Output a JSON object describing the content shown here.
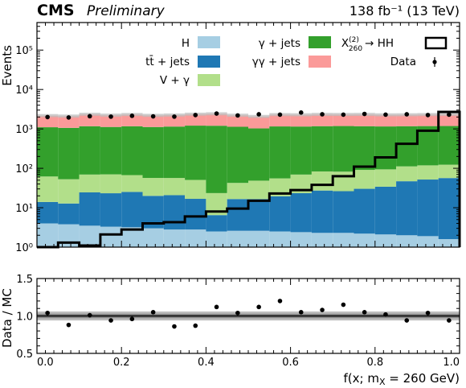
{
  "header": {
    "experiment": "CMS",
    "status": "Preliminary",
    "luminosity": "138 fb⁻¹ (13 TeV)"
  },
  "legend": {
    "h": "H",
    "tt": "tt̄ + jets",
    "vg": "V + γ",
    "gj": "γ + jets",
    "ggj": "γγ + jets",
    "signal": "X₍₂₆₀₎⁽²⁾ → HH",
    "signal_main": "X",
    "signal_sup": "(2)",
    "signal_sub": "260",
    "signal_rest": "→ HH",
    "data": "Data"
  },
  "colors": {
    "H": "#a6cee3",
    "tt": "#1f78b4",
    "vg": "#b2df8a",
    "gj": "#33a02c",
    "ggj": "#fb9a99",
    "signal": "#000000",
    "data": "#000000",
    "unc": "#bdbdbd"
  },
  "chart_data": [
    {
      "type": "bar",
      "stacked": true,
      "title": "",
      "xlabel": "",
      "ylabel": "Events",
      "yscale": "log",
      "ylim": [
        1,
        500000
      ],
      "xlim": [
        0,
        1
      ],
      "bin_edges": [
        0,
        0.05,
        0.1,
        0.15,
        0.2,
        0.25,
        0.3,
        0.35,
        0.4,
        0.45,
        0.5,
        0.55,
        0.6,
        0.65,
        0.7,
        0.75,
        0.8,
        0.85,
        0.9,
        0.95,
        1.0
      ],
      "ytick_labels": [
        "10⁰",
        "10¹",
        "10²",
        "10³",
        "10⁴",
        "10⁵"
      ],
      "ytick_values": [
        1,
        10,
        100,
        1000,
        10000,
        100000
      ],
      "series": [
        {
          "name": "H",
          "values": [
            4,
            3.8,
            3.5,
            3.3,
            3.2,
            3.0,
            2.8,
            2.8,
            2.5,
            2.6,
            2.6,
            2.5,
            2.4,
            2.3,
            2.3,
            2.2,
            2.1,
            2.0,
            1.9,
            1.6
          ]
        },
        {
          "name": "tt̄ + jets",
          "values": [
            10,
            9,
            21,
            20,
            22,
            17,
            18,
            14,
            4,
            14,
            14,
            17,
            21,
            25,
            24,
            28,
            32,
            45,
            50,
            55
          ]
        },
        {
          "name": "V + γ",
          "values": [
            48,
            40,
            45,
            47,
            42,
            37,
            36,
            34,
            17,
            26,
            32,
            36,
            46,
            56,
            56,
            61,
            60,
            65,
            67,
            67
          ]
        },
        {
          "name": "γ + jets",
          "values": [
            1040,
            1010,
            1100,
            1050,
            1100,
            1060,
            1090,
            1160,
            1180,
            1090,
            980,
            1100,
            1080,
            1090,
            1100,
            1080,
            1060,
            1060,
            1060,
            1060
          ]
        },
        {
          "name": "γγ + jets",
          "values": [
            1060,
            1040,
            1170,
            1100,
            1140,
            1080,
            1090,
            1140,
            1200,
            1080,
            1030,
            1140,
            1120,
            1150,
            1130,
            1150,
            1110,
            1100,
            1120,
            1150
          ]
        }
      ],
      "signal": {
        "name": "X(2)260 → HH",
        "values": [
          0,
          1.3,
          1.1,
          2.1,
          2.8,
          4,
          4.3,
          6,
          8,
          9.5,
          15,
          23,
          28,
          38,
          63,
          110,
          190,
          420,
          900,
          2700
        ]
      },
      "data": {
        "name": "Data",
        "values": [
          2000,
          1950,
          2100,
          2050,
          2150,
          2080,
          2050,
          2250,
          2450,
          2200,
          2350,
          2300,
          2600,
          2350,
          2300,
          2400,
          2300,
          2350,
          2250,
          2300
        ]
      }
    },
    {
      "type": "scatter",
      "title": "",
      "xlabel": "f(x⃗; mₓ = 260 GeV)",
      "xlabel_prefix": "f(",
      "xlabel_vec": "x",
      "xlabel_mid": "; m",
      "xlabel_sub": "X",
      "xlabel_suffix": " = 260 GeV)",
      "ylabel": "Data / MC",
      "ylim": [
        0.5,
        1.5
      ],
      "xlim": [
        0,
        1
      ],
      "ytick_labels": [
        "0.5",
        "1.0",
        "1.5"
      ],
      "ytick_values": [
        0.5,
        1.0,
        1.5
      ],
      "xtick_labels": [
        "0.0",
        "0.2",
        "0.4",
        "0.6",
        "0.8",
        "1.0"
      ],
      "xtick_values": [
        0,
        0.2,
        0.4,
        0.6,
        0.8,
        1.0
      ],
      "x": [
        0.025,
        0.075,
        0.125,
        0.175,
        0.225,
        0.275,
        0.325,
        0.375,
        0.425,
        0.475,
        0.525,
        0.575,
        0.625,
        0.675,
        0.725,
        0.775,
        0.825,
        0.875,
        0.925,
        0.975
      ],
      "y": [
        1.04,
        0.88,
        1.01,
        0.94,
        0.96,
        1.05,
        0.86,
        0.87,
        1.12,
        1.04,
        1.12,
        1.2,
        1.05,
        1.08,
        1.15,
        1.05,
        1.02,
        0.94,
        1.04,
        0.94
      ]
    }
  ]
}
